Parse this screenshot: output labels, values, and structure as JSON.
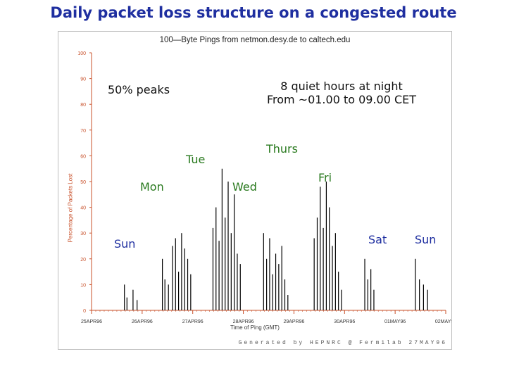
{
  "slide_title": "Daily packet loss structure on a congested route",
  "chart_data": {
    "type": "bar",
    "title": "100—Byte Pings from netmon.desy.de to caltech.edu",
    "ylabel": "Percentage of Packets Lost",
    "xlabel": "Time of Ping (GMT)",
    "ylim": [
      0,
      100
    ],
    "yticks": [
      "0",
      "10",
      "20",
      "30",
      "40",
      "50",
      "60",
      "70",
      "80",
      "90",
      "100"
    ],
    "xticks": [
      "25APR96",
      "26APR96",
      "27APR96",
      "28APR96",
      "29APR96",
      "30APR96",
      "01MAY96",
      "02MAY96"
    ],
    "grid": false,
    "samples_per_day": 72,
    "values": [
      0,
      0,
      0,
      0,
      0,
      0,
      0,
      0,
      0,
      0,
      0,
      0,
      0,
      0,
      0,
      0,
      0,
      0,
      0,
      0,
      0,
      0,
      0,
      0,
      0,
      0,
      0,
      0,
      0,
      0,
      0,
      0,
      0,
      0,
      0,
      0,
      0,
      0,
      0,
      0,
      0,
      0,
      0,
      0,
      0,
      0,
      0,
      0,
      0,
      0,
      0,
      0,
      0,
      0,
      0,
      0,
      0,
      0,
      0,
      0,
      0,
      0,
      0,
      0,
      0,
      0,
      0,
      0,
      0,
      0,
      0,
      0,
      0,
      0,
      0,
      0,
      0,
      0,
      0,
      0,
      0,
      0,
      0,
      0,
      0,
      0,
      0,
      0,
      0,
      0,
      0,
      0,
      0,
      0,
      0,
      0,
      0,
      0,
      0,
      0,
      0,
      0,
      0,
      0,
      0,
      0,
      0,
      0,
      0,
      0,
      0,
      0,
      0,
      0,
      0,
      0,
      0,
      0,
      0,
      0,
      10,
      0,
      5,
      0,
      0,
      0,
      0,
      0,
      0,
      8,
      0,
      0,
      0,
      5,
      0,
      0,
      0,
      0,
      0,
      0,
      0,
      0,
      0,
      0,
      0,
      0,
      0,
      0,
      0,
      0,
      0,
      0,
      0,
      0,
      0,
      0,
      0,
      0,
      0,
      0,
      0,
      0,
      0,
      0,
      0,
      0,
      0,
      0,
      0,
      0,
      0,
      0,
      0,
      0,
      0,
      0,
      0,
      0,
      0,
      0,
      0,
      0,
      0,
      0,
      0,
      0,
      0,
      0,
      0,
      0,
      0,
      0,
      0,
      0,
      0,
      0,
      0,
      0,
      0,
      0,
      0,
      0,
      0,
      0,
      0,
      0,
      0,
      0,
      0,
      0,
      0,
      0,
      0,
      0,
      0,
      0,
      0,
      0,
      0,
      0,
      0,
      0,
      0,
      0,
      0,
      0,
      0,
      0,
      0,
      0,
      0,
      0,
      0,
      0,
      0,
      0,
      0,
      0,
      0,
      0,
      0,
      0,
      0,
      0,
      0,
      0,
      0,
      0,
      0,
      0,
      0,
      0,
      0,
      0,
      0,
      0,
      0,
      0,
      0,
      0,
      0,
      0,
      0,
      0,
      0,
      0,
      0,
      0,
      0,
      0,
      0,
      0,
      0,
      0,
      0,
      0,
      0,
      0,
      0,
      0,
      0,
      0,
      0,
      0,
      0,
      0,
      0,
      0,
      0,
      0,
      0,
      0,
      0,
      0,
      0,
      0,
      0,
      0,
      0,
      0,
      0,
      0,
      0,
      0,
      0,
      0,
      0,
      0,
      0,
      0,
      0,
      0,
      0,
      0,
      0,
      0,
      0,
      0,
      0,
      0,
      0,
      0,
      0,
      0,
      0,
      0,
      0,
      0,
      0,
      0,
      0,
      0,
      0,
      0,
      0,
      0,
      0,
      0,
      0,
      0,
      0,
      0,
      0,
      0,
      0,
      0,
      0,
      0,
      0,
      0,
      0,
      0,
      0,
      0,
      0,
      0,
      0,
      0,
      0,
      0,
      0,
      0,
      0,
      0,
      0,
      0,
      0,
      0,
      0,
      0,
      0,
      0,
      0,
      0,
      0,
      0,
      0,
      0,
      0,
      0,
      0,
      0,
      0,
      0,
      0,
      0,
      0,
      0,
      0,
      0,
      0,
      0,
      0,
      0,
      0,
      0,
      0,
      0,
      0,
      0,
      0,
      0,
      0,
      0,
      0,
      0,
      0,
      0,
      0,
      0,
      0,
      0,
      0,
      0,
      0,
      0,
      0,
      0,
      0,
      0,
      0,
      0,
      0,
      0,
      0,
      0,
      0,
      0,
      0,
      0,
      0,
      0,
      0,
      0,
      0,
      0,
      0,
      0,
      0,
      0,
      0,
      0,
      0,
      0,
      0,
      0,
      0,
      0,
      0,
      0,
      0,
      0,
      0,
      0,
      0,
      0,
      0,
      0,
      0,
      0,
      0,
      0,
      0,
      0,
      0,
      0,
      0,
      0,
      0,
      0,
      0,
      0,
      0,
      0,
      0,
      0,
      0,
      0,
      0,
      0,
      0,
      0,
      0,
      0,
      0,
      0,
      0,
      0,
      0,
      0,
      0,
      0,
      0,
      0,
      0,
      0,
      0,
      0,
      0,
      0,
      0,
      0
    ],
    "peaks": [
      {
        "t": 0.65,
        "v": 10
      },
      {
        "t": 0.7,
        "v": 5
      },
      {
        "t": 0.82,
        "v": 8
      },
      {
        "t": 0.9,
        "v": 4
      },
      {
        "t": 1.4,
        "v": 20
      },
      {
        "t": 1.45,
        "v": 12
      },
      {
        "t": 1.52,
        "v": 10
      },
      {
        "t": 1.6,
        "v": 25
      },
      {
        "t": 1.66,
        "v": 28
      },
      {
        "t": 1.72,
        "v": 15
      },
      {
        "t": 1.78,
        "v": 30
      },
      {
        "t": 1.84,
        "v": 24
      },
      {
        "t": 1.9,
        "v": 20
      },
      {
        "t": 1.96,
        "v": 14
      },
      {
        "t": 2.4,
        "v": 32
      },
      {
        "t": 2.46,
        "v": 40
      },
      {
        "t": 2.52,
        "v": 27
      },
      {
        "t": 2.58,
        "v": 55
      },
      {
        "t": 2.64,
        "v": 36
      },
      {
        "t": 2.7,
        "v": 50
      },
      {
        "t": 2.76,
        "v": 30
      },
      {
        "t": 2.82,
        "v": 45
      },
      {
        "t": 2.88,
        "v": 22
      },
      {
        "t": 2.94,
        "v": 18
      },
      {
        "t": 3.4,
        "v": 30
      },
      {
        "t": 3.46,
        "v": 20
      },
      {
        "t": 3.52,
        "v": 28
      },
      {
        "t": 3.58,
        "v": 14
      },
      {
        "t": 3.64,
        "v": 22
      },
      {
        "t": 3.7,
        "v": 18
      },
      {
        "t": 3.76,
        "v": 25
      },
      {
        "t": 3.82,
        "v": 12
      },
      {
        "t": 3.88,
        "v": 6
      },
      {
        "t": 4.4,
        "v": 28
      },
      {
        "t": 4.46,
        "v": 36
      },
      {
        "t": 4.52,
        "v": 48
      },
      {
        "t": 4.58,
        "v": 32
      },
      {
        "t": 4.64,
        "v": 50
      },
      {
        "t": 4.7,
        "v": 40
      },
      {
        "t": 4.76,
        "v": 25
      },
      {
        "t": 4.82,
        "v": 30
      },
      {
        "t": 4.88,
        "v": 15
      },
      {
        "t": 4.94,
        "v": 8
      },
      {
        "t": 5.4,
        "v": 20
      },
      {
        "t": 5.46,
        "v": 12
      },
      {
        "t": 5.52,
        "v": 16
      },
      {
        "t": 5.58,
        "v": 8
      },
      {
        "t": 6.4,
        "v": 20
      },
      {
        "t": 6.48,
        "v": 12
      },
      {
        "t": 6.56,
        "v": 10
      },
      {
        "t": 6.64,
        "v": 8
      }
    ]
  },
  "annotations": {
    "peaks_note": "50% peaks",
    "quiet_line1": "8 quiet hours at night",
    "quiet_line2": "From ~01.00 to 09.00 CET",
    "days": [
      "Sun",
      "Mon",
      "Tue",
      "Wed",
      "Thurs",
      "Fri",
      "Sat",
      "Sun"
    ]
  },
  "footer": "Generated by HEPNRC @ Fermilab 27MAY96",
  "colors": {
    "title": "#1f2fa0",
    "axis_label": "#c8502a",
    "day_label": "#2a7a1f",
    "bars": "#000000"
  }
}
